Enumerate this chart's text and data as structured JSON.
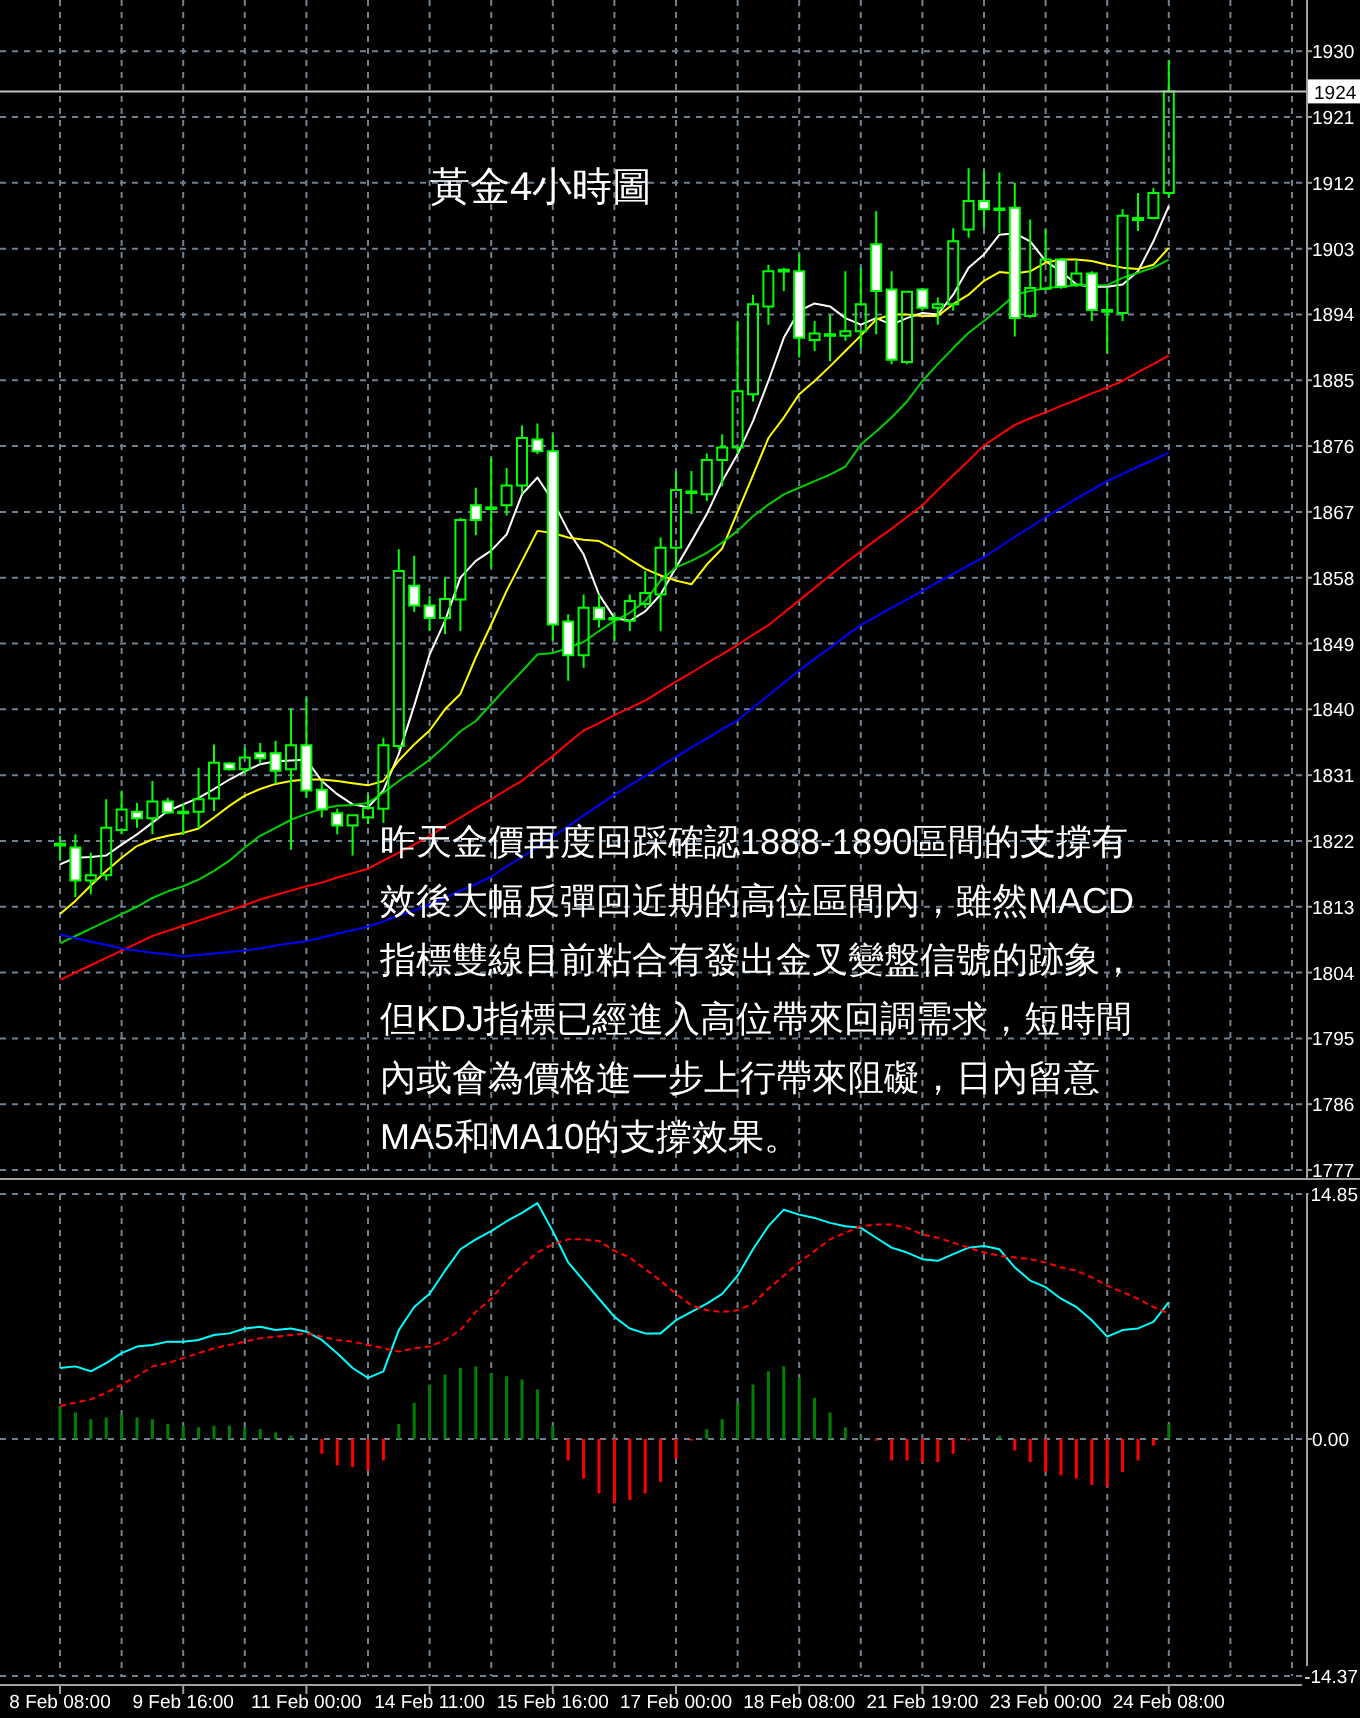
{
  "chart_data": [
    {
      "type": "candlestick",
      "title": "黃金4小時圖",
      "annotations": [
        "昨天金價再度回踩確認1888-1890區間的支撐有",
        "效後大幅反彈回近期的高位區間內，雖然MACD",
        "指標雙線目前粘合有發出金叉變盤信號的跡象，",
        "但KDJ指標已經進入高位帶來回調需求，短時間",
        "內或會為價格進一步上行帶來阻礙，日內留意",
        "MA5和MA10的支撐效果。"
      ],
      "categories": [
        null,
        null,
        null,
        null,
        null,
        null,
        null,
        null,
        null,
        null,
        null,
        null,
        null,
        null,
        null,
        null,
        null,
        null,
        null,
        null,
        null,
        null,
        null,
        null,
        null,
        null,
        null,
        null,
        null,
        null,
        null,
        null,
        null,
        null,
        null,
        null,
        null,
        null,
        null,
        null,
        null,
        null,
        null,
        null,
        null,
        null,
        null,
        null,
        null,
        null,
        null,
        null,
        null,
        null,
        null,
        null,
        null,
        null,
        null,
        null,
        null,
        null,
        null,
        null,
        null,
        null,
        null,
        null,
        null,
        null,
        null,
        null,
        null
      ],
      "ohlc": [
        [
          1821.4,
          1822.7,
          1819.3,
          1821.6
        ],
        [
          1821.1,
          1822.9,
          1814.3,
          1816.6
        ],
        [
          1816.6,
          1820.4,
          1814.7,
          1817.3
        ],
        [
          1817.3,
          1827.7,
          1816.6,
          1823.8
        ],
        [
          1823.5,
          1828.9,
          1822.9,
          1826.3
        ],
        [
          1826.0,
          1827.2,
          1823.8,
          1825.1
        ],
        [
          1825.1,
          1830.2,
          1822.9,
          1827.4
        ],
        [
          1827.4,
          1827.9,
          1825.7,
          1825.9
        ],
        [
          1825.9,
          1827.2,
          1822.8,
          1826.0
        ],
        [
          1826.0,
          1832.0,
          1823.7,
          1827.7
        ],
        [
          1827.8,
          1835.2,
          1826.1,
          1832.7
        ],
        [
          1832.6,
          1832.8,
          1831.6,
          1831.8
        ],
        [
          1831.8,
          1834.8,
          1831.1,
          1833.4
        ],
        [
          1834.0,
          1835.4,
          1832.5,
          1833.3
        ],
        [
          1834.0,
          1835.7,
          1829.8,
          1831.6
        ],
        [
          1831.8,
          1840.1,
          1820.8,
          1835.1
        ],
        [
          1835.1,
          1841.6,
          1827.9,
          1828.9
        ],
        [
          1829.0,
          1830.2,
          1825.2,
          1826.3
        ],
        [
          1825.8,
          1826.4,
          1822.9,
          1824.1
        ],
        [
          1824.1,
          1825.5,
          1820.0,
          1825.5
        ],
        [
          1825.2,
          1828.4,
          1824.3,
          1826.5
        ],
        [
          1826.4,
          1836.1,
          1824.5,
          1835.1
        ],
        [
          1835.0,
          1861.9,
          1834.5,
          1858.9
        ],
        [
          1856.9,
          1861.0,
          1853.3,
          1854.2
        ],
        [
          1854.2,
          1855.5,
          1850.7,
          1852.5
        ],
        [
          1852.5,
          1858.0,
          1850.3,
          1855.1
        ],
        [
          1855.0,
          1866.2,
          1850.7,
          1865.9
        ],
        [
          1867.9,
          1870.3,
          1863.8,
          1865.9
        ],
        [
          1867.6,
          1874.4,
          1859.4,
          1867.5
        ],
        [
          1867.9,
          1873.0,
          1866.5,
          1870.6
        ],
        [
          1870.6,
          1878.8,
          1869.4,
          1877.1
        ],
        [
          1876.9,
          1879.1,
          1874.9,
          1875.3
        ],
        [
          1875.3,
          1877.6,
          1849.4,
          1851.6
        ],
        [
          1852.0,
          1853.0,
          1843.9,
          1847.4
        ],
        [
          1847.4,
          1855.7,
          1845.7,
          1853.9
        ],
        [
          1853.9,
          1855.7,
          1851.2,
          1852.3
        ],
        [
          1852.5,
          1853.0,
          1849.4,
          1852.4
        ],
        [
          1852.1,
          1855.7,
          1850.7,
          1854.8
        ],
        [
          1854.4,
          1858.9,
          1853.9,
          1855.9
        ],
        [
          1855.7,
          1863.5,
          1850.7,
          1862.1
        ],
        [
          1862.1,
          1872.6,
          1859.4,
          1870.0
        ],
        [
          1869.8,
          1872.6,
          1866.7,
          1869.7
        ],
        [
          1869.4,
          1875.0,
          1868.5,
          1874.1
        ],
        [
          1874.1,
          1877.6,
          1870.5,
          1875.8
        ],
        [
          1875.8,
          1893.1,
          1874.9,
          1883.5
        ],
        [
          1883.1,
          1896.7,
          1882.1,
          1895.4
        ],
        [
          1895.1,
          1900.8,
          1892.6,
          1899.9
        ],
        [
          1900.1,
          1900.4,
          1897.2,
          1900.0
        ],
        [
          1899.9,
          1902.2,
          1888.1,
          1890.8
        ],
        [
          1890.5,
          1893.1,
          1889.0,
          1891.4
        ],
        [
          1891.3,
          1894.0,
          1887.6,
          1891.2
        ],
        [
          1891.1,
          1899.9,
          1890.4,
          1891.7
        ],
        [
          1891.7,
          1900.4,
          1889.4,
          1895.4
        ],
        [
          1903.6,
          1908.1,
          1891.3,
          1897.2
        ],
        [
          1897.4,
          1899.9,
          1887.2,
          1887.8
        ],
        [
          1887.5,
          1897.2,
          1887.2,
          1897.1
        ],
        [
          1897.4,
          1897.6,
          1894.5,
          1894.9
        ],
        [
          1894.9,
          1896.3,
          1892.6,
          1895.4
        ],
        [
          1895.4,
          1905.8,
          1894.5,
          1904.0
        ],
        [
          1905.6,
          1914.0,
          1904.5,
          1909.5
        ],
        [
          1909.5,
          1913.6,
          1905.8,
          1908.4
        ],
        [
          1908.4,
          1913.4,
          1905.1,
          1908.5
        ],
        [
          1908.6,
          1912.0,
          1891.0,
          1893.5
        ],
        [
          1893.8,
          1907.0,
          1893.5,
          1897.6
        ],
        [
          1897.5,
          1905.6,
          1897.4,
          1901.5
        ],
        [
          1901.5,
          1901.7,
          1897.5,
          1897.8
        ],
        [
          1898.1,
          1901.5,
          1897.8,
          1899.6
        ],
        [
          1899.6,
          1899.9,
          1893.1,
          1894.6
        ],
        [
          1894.6,
          1897.6,
          1888.7,
          1894.5
        ],
        [
          1894.2,
          1908.4,
          1893.1,
          1907.5
        ],
        [
          1906.9,
          1910.6,
          1905.4,
          1907.2
        ],
        [
          1907.2,
          1911.3,
          1907.0,
          1910.6
        ],
        [
          1910.6,
          1928.8,
          1910.0,
          1924.5
        ]
      ],
      "color": "#00ff00",
      "series": [
        {
          "type": "line",
          "color": "#ffffff",
          "values": [
            1818.8,
            1819.7,
            1819.8,
            1820.0,
            1821.5,
            1822.9,
            1824.5,
            1826.1,
            1827.0,
            1827.9,
            1829.1,
            1830.4,
            1831.5,
            1832.5,
            1832.9,
            1833.0,
            1833.1,
            1830.2,
            1828.4,
            1827.0,
            1826.6,
            1828.9,
            1833.9,
            1840.5,
            1847.5,
            1852.1,
            1858.0,
            1860.3,
            1861.7,
            1863.9,
            1869.4,
            1871.7,
            1868.5,
            1864.4,
            1861.2,
            1855.7,
            1852.5,
            1852.1,
            1853.4,
            1855.7,
            1859.4,
            1863.0,
            1866.7,
            1871.2,
            1874.9,
            1879.4,
            1884.9,
            1890.8,
            1894.5,
            1895.5,
            1895.1,
            1893.5,
            1892.6,
            1893.5,
            1892.6,
            1893.5,
            1894.2,
            1894.0,
            1896.7,
            1900.4,
            1902.2,
            1904.9,
            1905.1,
            1904.0,
            1901.3,
            1899.9,
            1898.1,
            1897.8,
            1897.8,
            1898.1,
            1899.9,
            1904.0,
            1908.8
          ]
        },
        {
          "type": "line",
          "color": "#ffff00",
          "values": [
            1812.0,
            1813.8,
            1815.9,
            1817.9,
            1819.7,
            1821.3,
            1822.2,
            1822.7,
            1823.1,
            1823.7,
            1825.2,
            1826.8,
            1828.2,
            1829.1,
            1829.8,
            1830.2,
            1830.4,
            1830.4,
            1830.2,
            1829.9,
            1829.6,
            1830.2,
            1833.0,
            1835.2,
            1837.1,
            1840.0,
            1842.1,
            1847.1,
            1851.6,
            1856.2,
            1860.3,
            1864.4,
            1864.1,
            1863.5,
            1863.2,
            1863.0,
            1861.9,
            1860.5,
            1859.2,
            1858.3,
            1857.6,
            1857.1,
            1859.8,
            1862.0,
            1867.0,
            1872.0,
            1877.1,
            1879.9,
            1883.1,
            1884.9,
            1886.9,
            1889.0,
            1891.1,
            1893.3,
            1894.0,
            1894.0,
            1893.8,
            1893.8,
            1895.4,
            1896.7,
            1898.6,
            1899.8,
            1899.6,
            1899.9,
            1901.1,
            1901.5,
            1901.5,
            1901.3,
            1900.8,
            1900.4,
            1900.2,
            1900.8,
            1903.1
          ]
        },
        {
          "type": "line",
          "color": "#00d000",
          "values": [
            1808.0,
            1809.0,
            1810.0,
            1811.0,
            1812.0,
            1813.0,
            1814.2,
            1815.1,
            1815.8,
            1816.7,
            1817.9,
            1819.3,
            1821.1,
            1822.7,
            1823.8,
            1824.9,
            1825.7,
            1826.4,
            1826.8,
            1826.9,
            1827.2,
            1828.6,
            1830.2,
            1831.6,
            1833.1,
            1835.0,
            1837.0,
            1838.4,
            1840.7,
            1843.0,
            1845.2,
            1847.5,
            1847.7,
            1848.4,
            1849.2,
            1850.7,
            1852.1,
            1853.2,
            1854.8,
            1857.6,
            1859.4,
            1860.3,
            1861.4,
            1862.8,
            1864.4,
            1866.4,
            1868.0,
            1869.4,
            1870.3,
            1871.2,
            1872.1,
            1873.2,
            1876.2,
            1878.0,
            1879.9,
            1882.1,
            1884.9,
            1887.2,
            1889.4,
            1891.5,
            1893.1,
            1894.8,
            1896.7,
            1897.2,
            1897.6,
            1897.8,
            1898.0,
            1898.0,
            1898.0,
            1899.0,
            1899.7,
            1900.4,
            1901.5
          ]
        },
        {
          "type": "line",
          "color": "#ff0000",
          "values": [
            1803,
            1804,
            1805,
            1806,
            1807,
            1808,
            1809,
            1809.7,
            1810.4,
            1811.1,
            1811.8,
            1812.5,
            1813.2,
            1814,
            1814.6,
            1815.2,
            1815.8,
            1816.3,
            1817,
            1817.6,
            1818.2,
            1819.3,
            1820.4,
            1821.5,
            1822.7,
            1824,
            1825.2,
            1826.5,
            1827.7,
            1829,
            1830.2,
            1832,
            1833.6,
            1835.4,
            1837.1,
            1838.1,
            1839.2,
            1840.2,
            1841.2,
            1842.5,
            1843.8,
            1845,
            1846.3,
            1847.5,
            1848.8,
            1850.2,
            1851.5,
            1853.2,
            1854.9,
            1856.6,
            1858.3,
            1860,
            1861.6,
            1863.2,
            1864.7,
            1866.3,
            1867.9,
            1870,
            1872,
            1874,
            1876.1,
            1877.5,
            1878.9,
            1879.8,
            1880.6,
            1881.5,
            1882.3,
            1883.2,
            1884,
            1884.9,
            1886.1,
            1887.2,
            1888.4
          ]
        },
        {
          "type": "line",
          "color": "#0000ff",
          "values": [
            1809.2,
            1808.7,
            1808.2,
            1807.8,
            1807.3,
            1807,
            1806.7,
            1806.5,
            1806.2,
            1806.4,
            1806.6,
            1806.8,
            1807,
            1807.3,
            1807.7,
            1808,
            1808.3,
            1808.8,
            1809.3,
            1809.8,
            1810.3,
            1811,
            1811.8,
            1812.5,
            1813.3,
            1814.2,
            1815.2,
            1816.1,
            1817.1,
            1818.5,
            1819.8,
            1821.2,
            1822.6,
            1824,
            1825.5,
            1826.9,
            1828.3,
            1829.6,
            1830.9,
            1832.2,
            1833.5,
            1834.8,
            1836,
            1837.3,
            1838.5,
            1840.2,
            1841.9,
            1843.6,
            1845.3,
            1846.9,
            1848.4,
            1850,
            1851.5,
            1852.7,
            1853.9,
            1855,
            1856.2,
            1857.4,
            1858.5,
            1859.7,
            1860.8,
            1862.2,
            1863.6,
            1864.9,
            1866.3,
            1867.5,
            1868.8,
            1870,
            1871.2,
            1872.2,
            1873.2,
            1874.1,
            1875.1
          ]
        }
      ],
      "ylim": [
        1777,
        1937
      ],
      "yticks": [
        1777,
        1786,
        1795,
        1804,
        1813,
        1822,
        1831,
        1840,
        1849,
        1858,
        1867,
        1876,
        1885,
        1894,
        1903,
        1912,
        1921,
        1930
      ],
      "grid": true,
      "ref_lines": [
        {
          "axis": "y",
          "value": 1924.5,
          "label": "1924",
          "color": "#c0c0c0"
        }
      ]
    },
    {
      "type": "bar",
      "categories": [
        "8 Feb 08:00",
        null,
        null,
        null,
        null,
        null,
        null,
        null,
        "9 Feb 16:00",
        null,
        null,
        null,
        null,
        null,
        null,
        null,
        "11 Feb 00:00",
        null,
        null,
        null,
        null,
        null,
        null,
        null,
        "14 Feb 11:00",
        null,
        null,
        null,
        null,
        null,
        null,
        null,
        "15 Feb 16:00",
        null,
        null,
        null,
        null,
        null,
        null,
        null,
        "17 Feb 00:00",
        null,
        null,
        null,
        null,
        null,
        null,
        null,
        "18 Feb 08:00",
        null,
        null,
        null,
        null,
        null,
        null,
        null,
        "21 Feb 19:00",
        null,
        null,
        null,
        null,
        null,
        null,
        null,
        "23 Feb 00:00",
        null,
        null,
        null,
        null,
        null,
        null,
        null,
        "24 Feb 08:00"
      ],
      "series": [
        {
          "type": "bar",
          "values": [
            2.0,
            1.6,
            1.2,
            1.3,
            1.5,
            1.3,
            1.2,
            0.9,
            0.8,
            0.7,
            0.8,
            0.8,
            0.7,
            0.6,
            0.4,
            0.2,
            0,
            -0.9,
            -1.6,
            -1.7,
            -1.9,
            -1.3,
            0.9,
            2.2,
            3.3,
            3.9,
            4.3,
            4.4,
            4.0,
            3.8,
            3.6,
            3.0,
            0.8,
            -1.3,
            -2.4,
            -3.3,
            -3.9,
            -3.7,
            -3.3,
            -2.6,
            -1.2,
            -0.1,
            0.6,
            1.2,
            2.2,
            3.3,
            4.1,
            4.4,
            3.7,
            2.5,
            1.6,
            0.7,
            0.1,
            -0.1,
            -1.3,
            -1.3,
            -1.4,
            -1.4,
            -0.9,
            -0.1,
            0,
            0.2,
            -0.7,
            -1.4,
            -2.0,
            -2.2,
            -2.4,
            -2.8,
            -2.9,
            -2.0,
            -1.3,
            -0.4,
            0.9
          ],
          "colors": [
            "#008000",
            "#008000",
            "#008000",
            "#008000",
            "#008000",
            "#008000",
            "#008000",
            "#008000",
            "#008000",
            "#008000",
            "#008000",
            "#008000",
            "#008000",
            "#008000",
            "#008000",
            "#008000",
            "#008000",
            "#ff0000",
            "#ff0000",
            "#ff0000",
            "#ff0000",
            "#ff0000",
            "#008000",
            "#008000",
            "#008000",
            "#008000",
            "#008000",
            "#008000",
            "#008000",
            "#008000",
            "#008000",
            "#008000",
            "#008000",
            "#ff0000",
            "#ff0000",
            "#ff0000",
            "#ff0000",
            "#ff0000",
            "#ff0000",
            "#ff0000",
            "#ff0000",
            "#ff0000",
            "#008000",
            "#008000",
            "#008000",
            "#008000",
            "#008000",
            "#008000",
            "#008000",
            "#008000",
            "#008000",
            "#008000",
            "#008000",
            "#ff0000",
            "#ff0000",
            "#ff0000",
            "#ff0000",
            "#ff0000",
            "#ff0000",
            "#ff0000",
            "#008000",
            "#008000",
            "#ff0000",
            "#ff0000",
            "#ff0000",
            "#ff0000",
            "#ff0000",
            "#ff0000",
            "#ff0000",
            "#ff0000",
            "#ff0000",
            "#ff0000",
            "#008000"
          ]
        },
        {
          "type": "line",
          "color": "#00ffff",
          "values": [
            4.3,
            4.4,
            4.1,
            4.6,
            5.2,
            5.6,
            5.7,
            5.9,
            5.9,
            6.0,
            6.3,
            6.4,
            6.7,
            6.8,
            6.6,
            6.7,
            6.5,
            6.0,
            5.2,
            4.3,
            3.7,
            4.1,
            6.6,
            8.0,
            8.8,
            10.2,
            11.5,
            12.1,
            12.6,
            13.2,
            13.7,
            14.3,
            12.6,
            10.7,
            9.6,
            8.5,
            7.4,
            6.7,
            6.4,
            6.4,
            7.2,
            7.7,
            8.2,
            8.8,
            9.9,
            11.5,
            12.9,
            13.9,
            13.6,
            13.4,
            13.1,
            12.9,
            12.8,
            12.2,
            11.6,
            11.3,
            10.9,
            10.8,
            11.2,
            11.6,
            11.7,
            11.5,
            10.4,
            9.6,
            9.2,
            8.5,
            8.0,
            7.2,
            6.2,
            6.6,
            6.7,
            7.1,
            8.3
          ]
        },
        {
          "type": "line",
          "color": "#ff0000",
          "line_style": "dashed",
          "values": [
            2.0,
            2.2,
            2.4,
            2.8,
            3.3,
            3.8,
            4.4,
            4.6,
            4.9,
            5.2,
            5.5,
            5.7,
            5.9,
            6.1,
            6.2,
            6.3,
            6.4,
            6.2,
            6.0,
            5.9,
            5.7,
            5.5,
            5.3,
            5.5,
            5.6,
            6.0,
            6.6,
            7.7,
            8.5,
            9.6,
            10.5,
            11.3,
            11.8,
            12.1,
            12.1,
            12.0,
            11.4,
            11.0,
            10.3,
            9.6,
            8.8,
            8.1,
            7.8,
            7.7,
            7.8,
            8.2,
            9.1,
            9.9,
            10.7,
            11.4,
            12.1,
            12.5,
            12.9,
            13.0,
            13.0,
            12.8,
            12.4,
            12.2,
            11.9,
            11.6,
            11.3,
            11.1,
            11.0,
            10.9,
            10.7,
            10.4,
            10.2,
            9.8,
            9.3,
            8.9,
            8.5,
            8.0,
            7.6
          ]
        }
      ],
      "ylim": [
        -14.37,
        14.85
      ],
      "yticks": [
        -14.37,
        {
          "value": 0,
          "label": "0.00"
        },
        14.85
      ],
      "grid": true
    }
  ]
}
